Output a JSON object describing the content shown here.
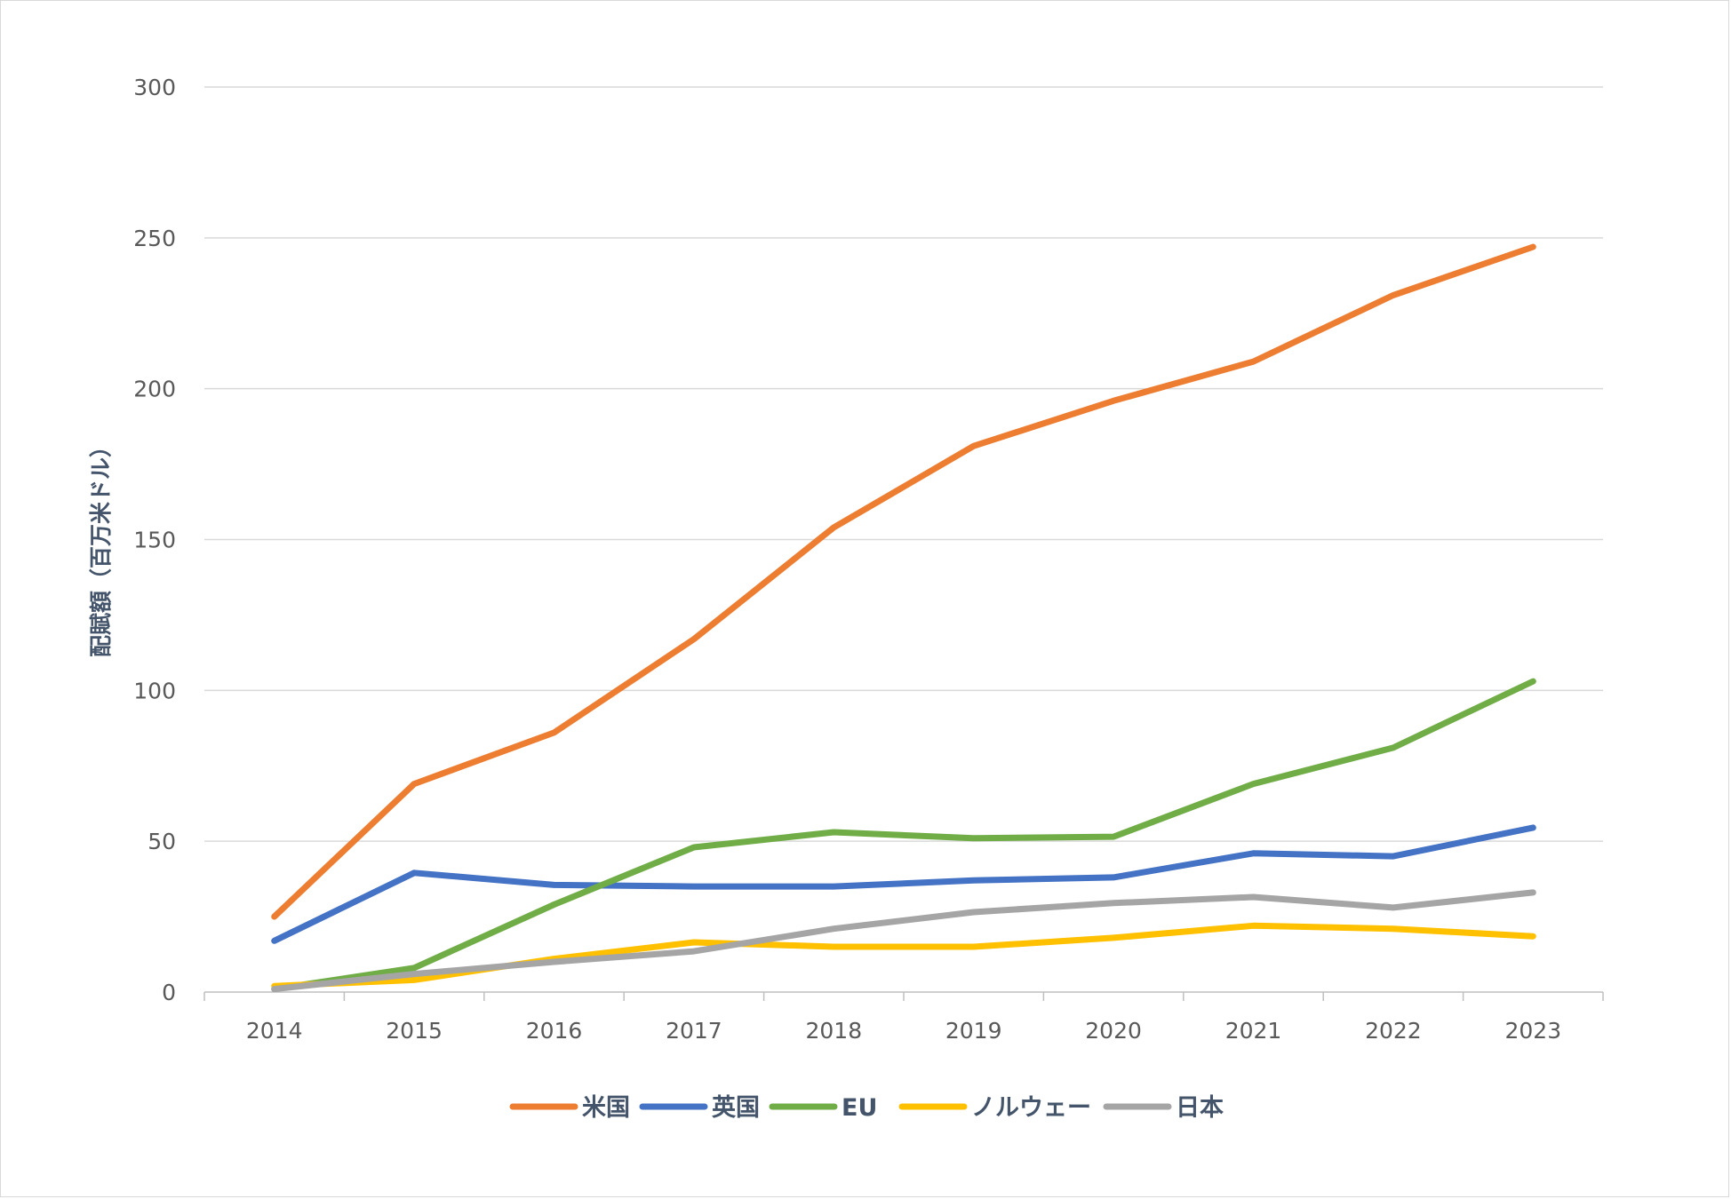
{
  "chart_data": {
    "type": "line",
    "title": "",
    "xlabel": "",
    "ylabel": "配賦額（百万米ドル）",
    "ylim": [
      0,
      300
    ],
    "yticks": [
      0,
      50,
      100,
      150,
      200,
      250,
      300
    ],
    "grid": true,
    "legend_position": "bottom",
    "categories": [
      "2014",
      "2015",
      "2016",
      "2017",
      "2018",
      "2019",
      "2020",
      "2021",
      "2022",
      "2023"
    ],
    "series": [
      {
        "name": "米国",
        "color": "#ED7D31",
        "values": [
          25,
          69,
          86,
          117,
          154,
          181,
          196,
          209,
          231,
          247
        ]
      },
      {
        "name": "英国",
        "color": "#4472C4",
        "values": [
          17,
          39.5,
          35.5,
          35,
          35,
          37,
          38,
          46,
          45,
          54.5
        ]
      },
      {
        "name": "EU",
        "color": "#70AD47",
        "values": [
          1,
          8,
          29,
          48,
          53,
          51,
          51.5,
          69,
          81,
          103
        ]
      },
      {
        "name": "ノルウェー",
        "color": "#FFC000",
        "values": [
          2,
          4,
          11,
          16.5,
          15,
          15,
          18,
          22,
          21,
          18.5
        ]
      },
      {
        "name": "日本",
        "color": "#A5A5A5",
        "values": [
          1,
          6,
          10,
          13.5,
          21,
          26.5,
          29.5,
          31.5,
          28,
          33
        ]
      }
    ]
  }
}
